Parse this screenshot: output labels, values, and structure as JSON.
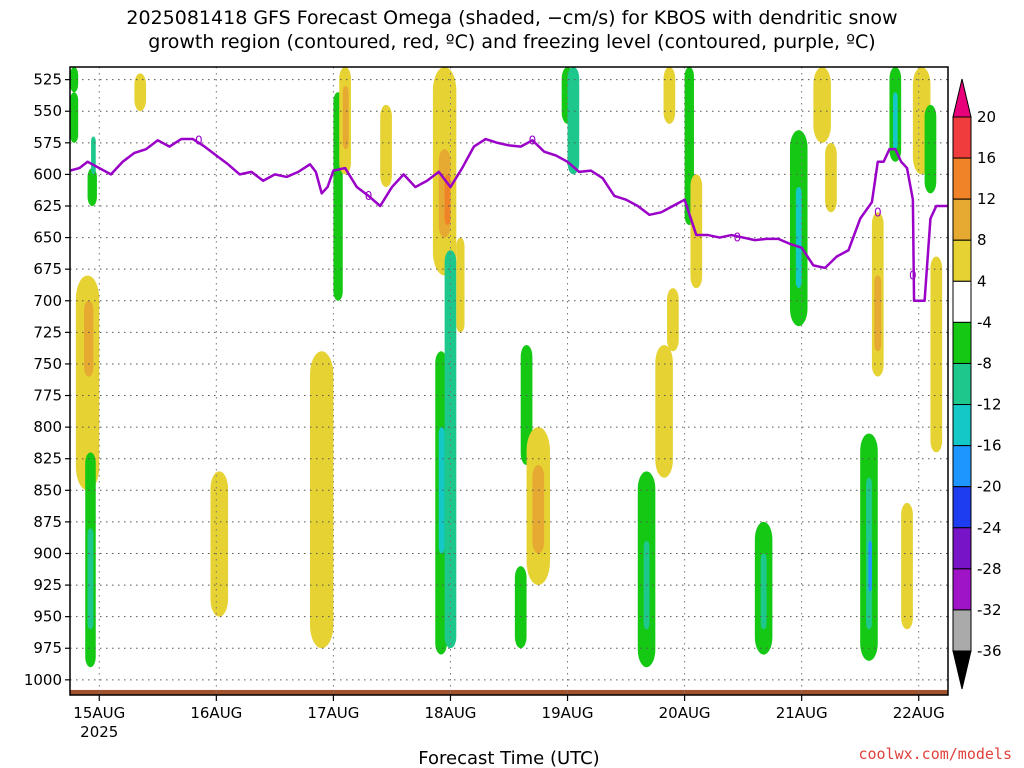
{
  "title": {
    "line1": "2025081418 GFS Forecast Omega (shaded, −cm/s) for KBOS with dendritic snow",
    "line2": "growth region (contoured, red, ºC) and freezing level (contoured, purple, ºC)"
  },
  "credit": "coolwx.com/models",
  "chart_data": {
    "type": "heatmap",
    "title": "2025081418 GFS Forecast Omega (shaded, −cm/s) for KBOS with dendritic snow growth region (contoured, red, ºC) and freezing level (contoured, purple, ºC)",
    "xlabel": "Forecast Time (UTC)",
    "ylabel": "",
    "x_tick_labels": [
      "15AUG",
      "16AUG",
      "17AUG",
      "18AUG",
      "19AUG",
      "20AUG",
      "21AUG",
      "22AUG"
    ],
    "x_tick_year": "2025",
    "x_range_days": [
      14.75,
      22.25
    ],
    "y_tick_labels": [
      "525",
      "550",
      "575",
      "600",
      "625",
      "650",
      "675",
      "700",
      "725",
      "750",
      "775",
      "800",
      "825",
      "850",
      "875",
      "900",
      "925",
      "950",
      "975",
      "1000"
    ],
    "y_range_hpa": [
      515,
      1012
    ],
    "y_reversed": true,
    "grid": true,
    "colorbar": {
      "labels": [
        "20",
        "16",
        "12",
        "8",
        "4",
        "-4",
        "-8",
        "-12",
        "-16",
        "-20",
        "-24",
        "-28",
        "-32",
        "-36"
      ],
      "colors": [
        "#e8007a",
        "#f03c3c",
        "#f08228",
        "#e6aa32",
        "#e6d232",
        "#ffffff",
        "#14c814",
        "#1ec88c",
        "#14c8c8",
        "#1e96ff",
        "#1e3cf0",
        "#7814c8",
        "#a014c8",
        "#aaaaaa",
        "#000000"
      ]
    },
    "freezing_level": {
      "color": "#9a00c8",
      "label": "0",
      "points": [
        [
          14.75,
          597
        ],
        [
          14.83,
          595
        ],
        [
          14.9,
          590
        ],
        [
          15.0,
          595
        ],
        [
          15.1,
          600
        ],
        [
          15.2,
          590
        ],
        [
          15.3,
          583
        ],
        [
          15.4,
          580
        ],
        [
          15.5,
          573
        ],
        [
          15.6,
          578
        ],
        [
          15.7,
          572
        ],
        [
          15.8,
          572
        ],
        [
          15.9,
          578
        ],
        [
          16.0,
          585
        ],
        [
          16.1,
          592
        ],
        [
          16.2,
          600
        ],
        [
          16.3,
          598
        ],
        [
          16.4,
          605
        ],
        [
          16.5,
          600
        ],
        [
          16.6,
          602
        ],
        [
          16.7,
          598
        ],
        [
          16.8,
          592
        ],
        [
          16.85,
          598
        ],
        [
          16.9,
          615
        ],
        [
          16.95,
          610
        ],
        [
          17.0,
          597
        ],
        [
          17.1,
          595
        ],
        [
          17.2,
          610
        ],
        [
          17.3,
          617
        ],
        [
          17.4,
          625
        ],
        [
          17.5,
          610
        ],
        [
          17.6,
          600
        ],
        [
          17.7,
          610
        ],
        [
          17.8,
          605
        ],
        [
          17.9,
          598
        ],
        [
          18.0,
          610
        ],
        [
          18.1,
          595
        ],
        [
          18.2,
          578
        ],
        [
          18.3,
          572
        ],
        [
          18.4,
          575
        ],
        [
          18.5,
          577
        ],
        [
          18.6,
          578
        ],
        [
          18.7,
          573
        ],
        [
          18.8,
          582
        ],
        [
          18.9,
          585
        ],
        [
          19.0,
          590
        ],
        [
          19.1,
          598
        ],
        [
          19.2,
          597
        ],
        [
          19.3,
          603
        ],
        [
          19.4,
          617
        ],
        [
          19.5,
          620
        ],
        [
          19.6,
          625
        ],
        [
          19.7,
          632
        ],
        [
          19.8,
          630
        ],
        [
          19.9,
          625
        ],
        [
          20.0,
          620
        ],
        [
          20.1,
          648
        ],
        [
          20.2,
          648
        ],
        [
          20.3,
          650
        ],
        [
          20.4,
          648
        ],
        [
          20.5,
          650
        ],
        [
          20.6,
          652
        ],
        [
          20.7,
          651
        ],
        [
          20.8,
          651
        ],
        [
          20.9,
          655
        ],
        [
          21.0,
          658
        ],
        [
          21.1,
          672
        ],
        [
          21.2,
          674
        ],
        [
          21.3,
          665
        ],
        [
          21.4,
          660
        ],
        [
          21.5,
          635
        ],
        [
          21.6,
          622
        ],
        [
          21.65,
          590
        ],
        [
          21.7,
          590
        ],
        [
          21.75,
          580
        ],
        [
          21.8,
          580
        ],
        [
          21.85,
          590
        ],
        [
          21.9,
          595
        ],
        [
          21.95,
          620
        ],
        [
          21.96,
          700
        ],
        [
          22.05,
          700
        ],
        [
          22.1,
          635
        ],
        [
          22.15,
          625
        ],
        [
          22.25,
          625
        ]
      ]
    },
    "omega_regions": [
      {
        "x": [
          14.75,
          14.82
        ],
        "y": [
          515,
          535
        ],
        "value": -8
      },
      {
        "x": [
          14.75,
          14.82
        ],
        "y": [
          535,
          575
        ],
        "value": -8
      },
      {
        "x": [
          14.9,
          14.98
        ],
        "y": [
          595,
          625
        ],
        "value": -8
      },
      {
        "x": [
          14.93,
          14.97
        ],
        "y": [
          570,
          600
        ],
        "value": -12
      },
      {
        "x": [
          15.3,
          15.4
        ],
        "y": [
          520,
          550
        ],
        "value": 4
      },
      {
        "x": [
          14.8,
          15.0
        ],
        "y": [
          680,
          850
        ],
        "value": 4
      },
      {
        "x": [
          14.87,
          14.95
        ],
        "y": [
          700,
          760
        ],
        "value": 12
      },
      {
        "x": [
          14.88,
          14.97
        ],
        "y": [
          820,
          990
        ],
        "value": -8
      },
      {
        "x": [
          14.9,
          14.95
        ],
        "y": [
          880,
          960
        ],
        "value": -12
      },
      {
        "x": [
          15.95,
          16.1
        ],
        "y": [
          835,
          950
        ],
        "value": 4
      },
      {
        "x": [
          15.98,
          16.03
        ],
        "y": [
          870,
          920
        ],
        "value": 8
      },
      {
        "x": [
          16.8,
          17.0
        ],
        "y": [
          740,
          975
        ],
        "value": 4
      },
      {
        "x": [
          16.85,
          16.95
        ],
        "y": [
          790,
          900
        ],
        "value": 8
      },
      {
        "x": [
          17.0,
          17.08
        ],
        "y": [
          535,
          700
        ],
        "value": -8
      },
      {
        "x": [
          17.05,
          17.15
        ],
        "y": [
          515,
          600
        ],
        "value": 4
      },
      {
        "x": [
          17.08,
          17.13
        ],
        "y": [
          530,
          580
        ],
        "value": 12
      },
      {
        "x": [
          17.4,
          17.5
        ],
        "y": [
          545,
          610
        ],
        "value": 4
      },
      {
        "x": [
          17.85,
          18.05
        ],
        "y": [
          515,
          680
        ],
        "value": 4
      },
      {
        "x": [
          17.9,
          18.0
        ],
        "y": [
          580,
          650
        ],
        "value": 12
      },
      {
        "x": [
          17.95,
          18.0
        ],
        "y": [
          600,
          640
        ],
        "value": 16
      },
      {
        "x": [
          17.87,
          17.97
        ],
        "y": [
          740,
          980
        ],
        "value": -8
      },
      {
        "x": [
          17.9,
          17.95
        ],
        "y": [
          800,
          900
        ],
        "value": -16
      },
      {
        "x": [
          17.95,
          18.05
        ],
        "y": [
          660,
          975
        ],
        "value": -12
      },
      {
        "x": [
          18.05,
          18.12
        ],
        "y": [
          650,
          725
        ],
        "value": 4
      },
      {
        "x": [
          18.6,
          18.7
        ],
        "y": [
          735,
          830
        ],
        "value": -8
      },
      {
        "x": [
          18.65,
          18.85
        ],
        "y": [
          800,
          925
        ],
        "value": 4
      },
      {
        "x": [
          18.7,
          18.8
        ],
        "y": [
          830,
          900
        ],
        "value": 12
      },
      {
        "x": [
          18.55,
          18.65
        ],
        "y": [
          910,
          975
        ],
        "value": -8
      },
      {
        "x": [
          18.95,
          19.05
        ],
        "y": [
          515,
          560
        ],
        "value": -8
      },
      {
        "x": [
          19.0,
          19.1
        ],
        "y": [
          515,
          600
        ],
        "value": -12
      },
      {
        "x": [
          19.6,
          19.75
        ],
        "y": [
          835,
          990
        ],
        "value": -8
      },
      {
        "x": [
          19.65,
          19.7
        ],
        "y": [
          890,
          960
        ],
        "value": -12
      },
      {
        "x": [
          19.75,
          19.9
        ],
        "y": [
          735,
          840
        ],
        "value": 4
      },
      {
        "x": [
          19.85,
          19.95
        ],
        "y": [
          690,
          740
        ],
        "value": 4
      },
      {
        "x": [
          19.82,
          19.92
        ],
        "y": [
          515,
          560
        ],
        "value": 4
      },
      {
        "x": [
          20.0,
          20.08
        ],
        "y": [
          515,
          640
        ],
        "value": -8
      },
      {
        "x": [
          20.05,
          20.15
        ],
        "y": [
          600,
          690
        ],
        "value": 4
      },
      {
        "x": [
          20.6,
          20.75
        ],
        "y": [
          875,
          980
        ],
        "value": -8
      },
      {
        "x": [
          20.65,
          20.7
        ],
        "y": [
          900,
          960
        ],
        "value": -12
      },
      {
        "x": [
          20.9,
          21.05
        ],
        "y": [
          565,
          720
        ],
        "value": -8
      },
      {
        "x": [
          20.95,
          21.0
        ],
        "y": [
          610,
          690
        ],
        "value": -16
      },
      {
        "x": [
          21.1,
          21.25
        ],
        "y": [
          515,
          575
        ],
        "value": 4
      },
      {
        "x": [
          21.2,
          21.3
        ],
        "y": [
          575,
          630
        ],
        "value": 4
      },
      {
        "x": [
          21.5,
          21.65
        ],
        "y": [
          805,
          985
        ],
        "value": -8
      },
      {
        "x": [
          21.55,
          21.6
        ],
        "y": [
          840,
          960
        ],
        "value": -12
      },
      {
        "x": [
          21.57,
          21.6
        ],
        "y": [
          890,
          930
        ],
        "value": -20
      },
      {
        "x": [
          21.6,
          21.7
        ],
        "y": [
          630,
          760
        ],
        "value": 4
      },
      {
        "x": [
          21.62,
          21.68
        ],
        "y": [
          680,
          740
        ],
        "value": 12
      },
      {
        "x": [
          21.75,
          21.85
        ],
        "y": [
          515,
          590
        ],
        "value": -8
      },
      {
        "x": [
          21.78,
          21.82
        ],
        "y": [
          535,
          580
        ],
        "value": -16
      },
      {
        "x": [
          21.85,
          21.95
        ],
        "y": [
          860,
          960
        ],
        "value": 4
      },
      {
        "x": [
          21.95,
          22.1
        ],
        "y": [
          515,
          600
        ],
        "value": 4
      },
      {
        "x": [
          22.05,
          22.15
        ],
        "y": [
          545,
          615
        ],
        "value": -8
      },
      {
        "x": [
          22.1,
          22.2
        ],
        "y": [
          665,
          820
        ],
        "value": 4
      }
    ],
    "terrain_hpa": 1008
  }
}
